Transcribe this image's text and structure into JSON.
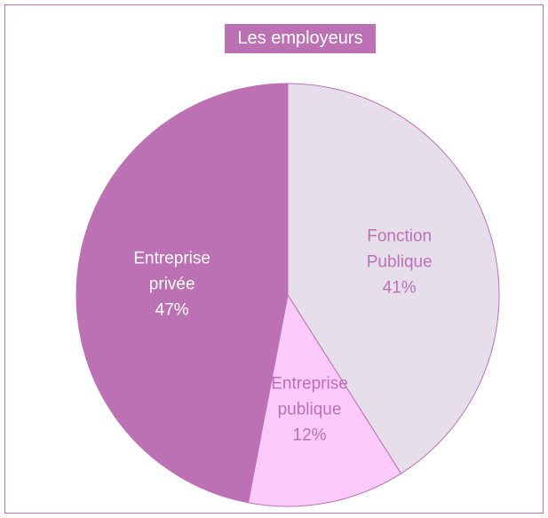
{
  "chart_data": {
    "type": "pie",
    "title": "Les employeurs",
    "categories": [
      "Fonction Publique",
      "Entreprise publique",
      "Entreprise privée"
    ],
    "values": [
      41,
      12,
      47
    ],
    "value_labels": [
      "41%",
      "12%",
      "47%"
    ],
    "colors": [
      "#e6dfeb",
      "#fccafa",
      "#bb71b3"
    ],
    "label_colors": [
      "#bb71b3",
      "#bb71b3",
      "#ffffff"
    ]
  }
}
